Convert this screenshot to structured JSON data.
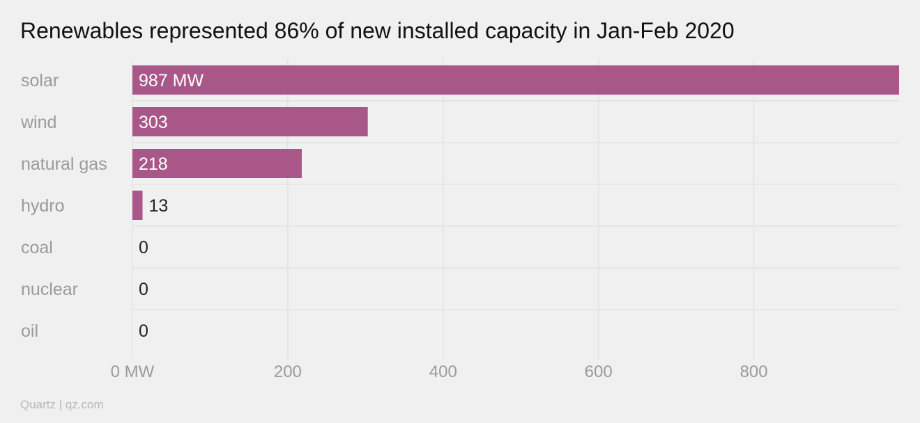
{
  "chart_data": {
    "type": "bar",
    "orientation": "horizontal",
    "title": "Renewables represented 86% of new installed capacity in Jan-Feb 2020",
    "categories": [
      "solar",
      "wind",
      "natural gas",
      "hydro",
      "coal",
      "nuclear",
      "oil"
    ],
    "values": [
      987,
      303,
      218,
      13,
      0,
      0,
      0
    ],
    "value_labels": [
      "987 MW",
      "303",
      "218",
      "13",
      "0",
      "0",
      "0"
    ],
    "unit": "MW",
    "xlim": [
      0,
      987
    ],
    "x_ticks": [
      0,
      200,
      400,
      600,
      800
    ],
    "x_tick_labels": [
      "0 MW",
      "200",
      "400",
      "600",
      "800"
    ],
    "grid": true,
    "bar_color": "#a85788",
    "xlabel": "",
    "ylabel": ""
  },
  "footer": {
    "source": "Quartz | qz.com"
  }
}
